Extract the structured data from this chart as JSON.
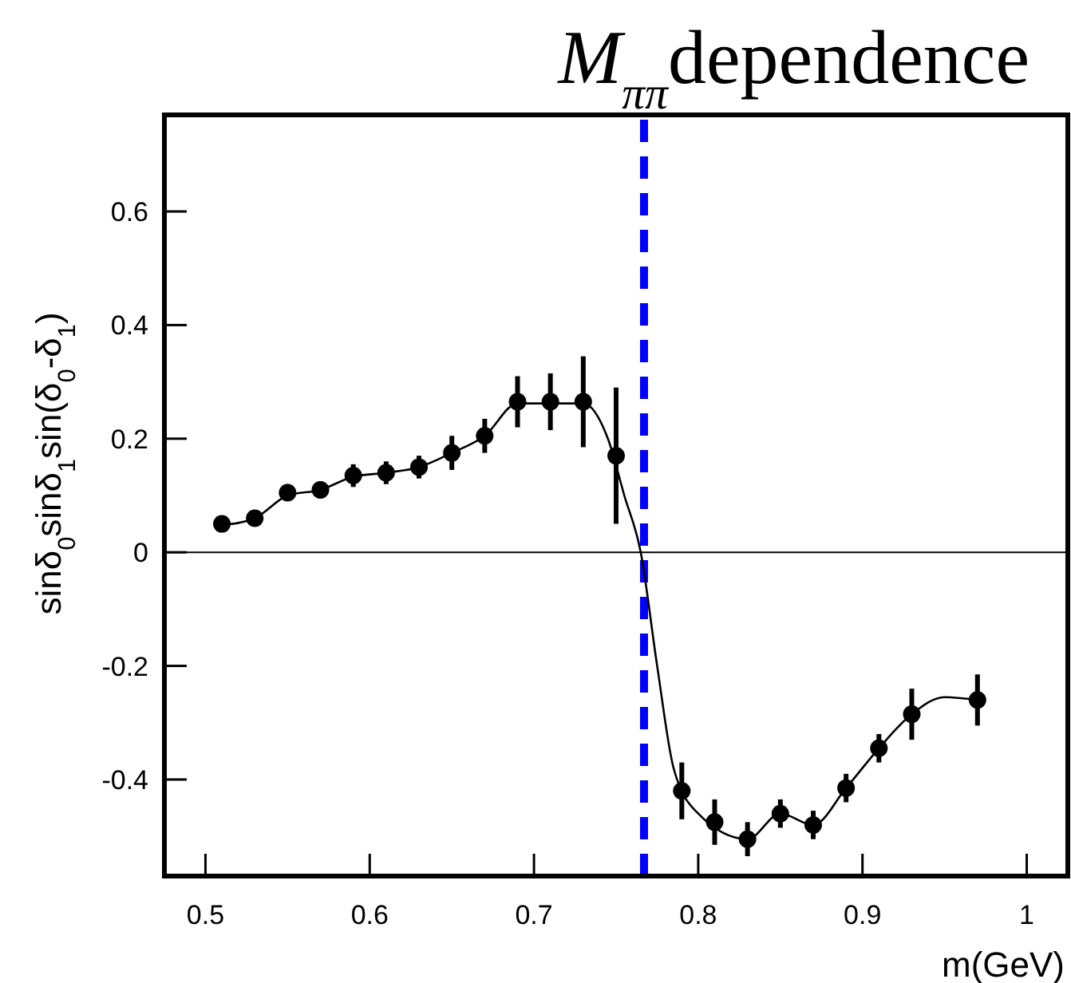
{
  "chart_data": {
    "type": "scatter",
    "title": "M$_{ππ}$dependence",
    "xlabel": "m(GeV)",
    "ylabel": "sinδ$_{0}$sinδ$_{1}$sin(δ$_{0}$-δ$_{1}$)",
    "xlim": [
      0.475,
      1.025
    ],
    "ylim": [
      -0.57,
      0.77
    ],
    "xticks": [
      0.5,
      0.6,
      0.7,
      0.8,
      0.9,
      {
        "value": 1,
        "label": "1"
      }
    ],
    "yticks": [
      -0.4,
      -0.2,
      0,
      0.2,
      0.4,
      0.6
    ],
    "grid": false,
    "series": [
      {
        "color": "#000000",
        "marker": "circle",
        "x": [
          0.51,
          0.53,
          0.55,
          0.57,
          0.59,
          0.61,
          0.63,
          0.65,
          0.67,
          0.69,
          0.71,
          0.73,
          0.75,
          0.79,
          0.81,
          0.83,
          0.85,
          0.87,
          0.89,
          0.91,
          0.93,
          0.97
        ],
        "values": [
          0.05,
          0.06,
          0.105,
          0.11,
          0.135,
          0.14,
          0.15,
          0.175,
          0.205,
          0.265,
          0.265,
          0.265,
          0.17,
          -0.42,
          -0.475,
          -0.505,
          -0.46,
          -0.48,
          -0.415,
          -0.345,
          -0.285,
          -0.26
        ],
        "errors": [
          0.01,
          0.01,
          0.015,
          0.015,
          0.02,
          0.02,
          0.02,
          0.03,
          0.03,
          0.045,
          0.05,
          0.08,
          0.12,
          0.05,
          0.04,
          0.03,
          0.025,
          0.025,
          0.025,
          0.025,
          0.045,
          0.045
        ]
      },
      {
        "type": "line",
        "color": "#000000",
        "marker": "none",
        "line_style": "solid",
        "x": [
          0.51,
          0.53,
          0.55,
          0.57,
          0.59,
          0.61,
          0.63,
          0.65,
          0.67,
          0.69,
          0.71,
          0.73,
          0.745,
          0.755,
          0.765,
          0.775,
          0.785,
          0.8,
          0.83,
          0.85,
          0.87,
          0.89,
          0.91,
          0.93,
          0.95,
          0.97
        ],
        "values": [
          0.048,
          0.06,
          0.1,
          0.11,
          0.133,
          0.14,
          0.15,
          0.175,
          0.205,
          0.262,
          0.262,
          0.262,
          0.2,
          0.1,
          0,
          -0.2,
          -0.38,
          -0.46,
          -0.505,
          -0.46,
          -0.48,
          -0.415,
          -0.345,
          -0.285,
          -0.255,
          -0.26
        ]
      }
    ],
    "ref_lines": [
      {
        "axis": "y",
        "value": 0,
        "color": "#000000",
        "line_style": "solid"
      },
      {
        "axis": "x",
        "value": 0.767,
        "color": "#0000ff",
        "line_style": "dashed"
      }
    ]
  }
}
